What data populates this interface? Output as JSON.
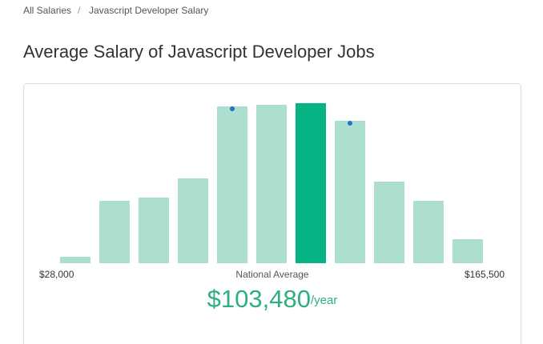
{
  "breadcrumb": {
    "items": [
      "All Salaries",
      "Javascript Developer Salary"
    ],
    "separator": "/"
  },
  "header": {
    "title": "Average Salary of Javascript Developer Jobs"
  },
  "chart_data": {
    "type": "bar",
    "values": [
      4,
      39,
      41,
      53,
      98,
      99,
      100,
      89,
      51,
      39,
      15
    ],
    "ylim": [
      0,
      100
    ],
    "color": "#addfd0",
    "highlight": 6,
    "highlight_color": "#05b384",
    "markers": [
      4,
      7
    ],
    "marker_color": "#1f73c9",
    "min_label": "$28,000",
    "center_label": "National Average",
    "max_label": "$165,500"
  },
  "salary": {
    "amount": "$103,480",
    "unit": "/year"
  }
}
